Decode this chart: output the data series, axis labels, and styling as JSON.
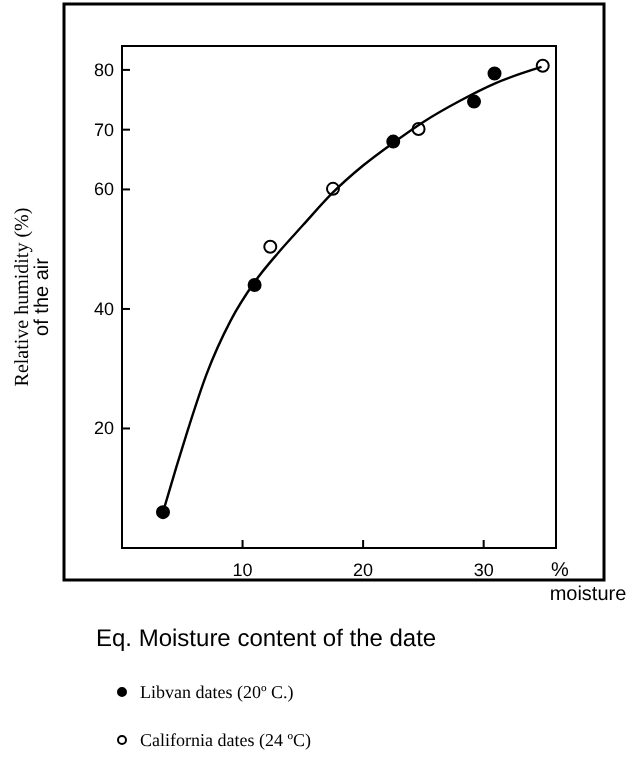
{
  "chart_data": {
    "type": "scatter",
    "title": "Eq. Moisture content of the date",
    "xlabel": "%\nmoisture",
    "ylabel": "Relative humidity (%)\nof the air",
    "xlim": [
      0,
      36
    ],
    "xticks": [
      10,
      20,
      30
    ],
    "ylim": [
      0,
      84
    ],
    "yticks": [
      20,
      40,
      60,
      70,
      80
    ],
    "grid": false,
    "legend": "bottom",
    "marker": "circle",
    "series": [
      {
        "name": "Libvan dates (20º C.)",
        "color": "#000000",
        "x": [
          3.4,
          11.0,
          22.5,
          29.2,
          30.9
        ],
        "values": [
          6,
          44,
          68,
          74.7,
          79.4
        ]
      },
      {
        "name": "California dates (24 ºC)",
        "color": "#ffffff",
        "x": [
          12.3,
          17.5,
          24.6,
          34.9
        ],
        "values": [
          50.4,
          60.1,
          70.1,
          80.7
        ]
      },
      {
        "type": "line",
        "marker": "none",
        "color": "#000000",
        "x": [
          3.4,
          4.5,
          5.5,
          7,
          9,
          11,
          13,
          15,
          17.5,
          20,
          22.5,
          25,
          28,
          31,
          34.8
        ],
        "values": [
          6,
          13.5,
          20,
          29,
          38,
          44.5,
          49.5,
          54,
          59.5,
          64,
          67.8,
          71.3,
          74.8,
          77.8,
          80.5
        ]
      }
    ]
  }
}
